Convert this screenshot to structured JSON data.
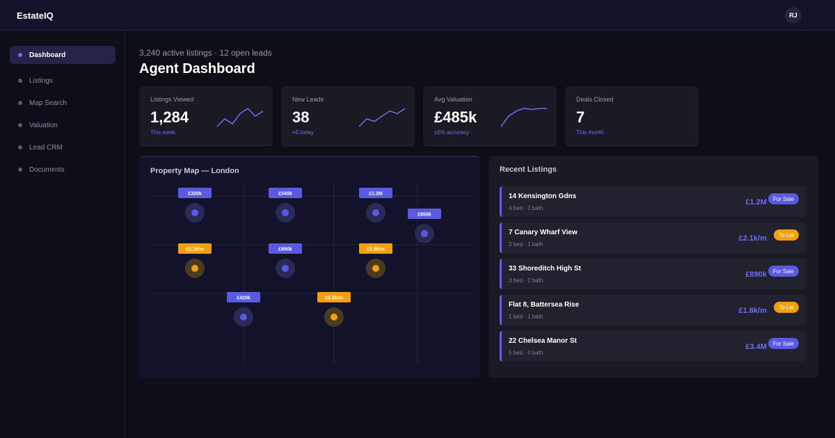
{
  "app": {
    "brand": "EstateIQ",
    "avatar_initials": "RJ"
  },
  "sidebar": {
    "items": [
      {
        "label": "Dashboard",
        "active": true
      },
      {
        "label": "Listings",
        "active": false
      },
      {
        "label": "Map Search",
        "active": false
      },
      {
        "label": "Valuation",
        "active": false
      },
      {
        "label": "Lead CRM",
        "active": false
      },
      {
        "label": "Documents",
        "active": false
      }
    ]
  },
  "header": {
    "subtitle": "3,240 active listings · 12 open leads",
    "title": "Agent Dashboard"
  },
  "stats": [
    {
      "label": "Listings Viewed",
      "value": "1,284",
      "sub": "This week",
      "trend": [
        2,
        5,
        3,
        7,
        9,
        6,
        8
      ]
    },
    {
      "label": "New Leads",
      "value": "38",
      "sub": "+5 today",
      "trend": [
        2,
        5,
        4,
        6,
        8,
        7,
        9
      ]
    },
    {
      "label": "Avg Valuation",
      "value": "£485k",
      "sub": "±5% accuracy",
      "trend": [
        2,
        6,
        8,
        9,
        8.6,
        9,
        9
      ]
    },
    {
      "label": "Deals Closed",
      "value": "7",
      "sub": "This month",
      "trend": []
    }
  ],
  "map": {
    "title": "Property Map — London",
    "pins": [
      {
        "price": "£320k",
        "type": "sale"
      },
      {
        "price": "£540k",
        "type": "sale"
      },
      {
        "price": "£1.2M",
        "type": "sale"
      },
      {
        "price": "£650k",
        "type": "sale"
      },
      {
        "price": "£2.1k/m",
        "type": "let"
      },
      {
        "price": "£890k",
        "type": "sale"
      },
      {
        "price": "£1.8k/m",
        "type": "let"
      },
      {
        "price": "£420k",
        "type": "sale"
      },
      {
        "price": "£3.2k/m",
        "type": "let"
      }
    ]
  },
  "recent": {
    "title": "Recent Listings",
    "items": [
      {
        "name": "14 Kensington Gdns",
        "meta": "4 bed · 3 bath",
        "price": "£1.2M",
        "badge": "For Sale",
        "type": "sale"
      },
      {
        "name": "7 Canary Wharf View",
        "meta": "2 bed · 1 bath",
        "price": "£2.1k/m",
        "badge": "To Let",
        "type": "let"
      },
      {
        "name": "33 Shoreditch High St",
        "meta": "3 bed · 2 bath",
        "price": "£890k",
        "badge": "For Sale",
        "type": "sale"
      },
      {
        "name": "Flat 8, Battersea Rise",
        "meta": "1 bed · 1 bath",
        "price": "£1.8k/m",
        "badge": "To Let",
        "type": "let"
      },
      {
        "name": "22 Chelsea Manor St",
        "meta": "5 bed · 4 bath",
        "price": "£3.4M",
        "badge": "For Sale",
        "type": "sale"
      }
    ]
  },
  "colors": {
    "accent": "#6e6ef0",
    "sale": "#5a5ae0",
    "let": "#f0a010"
  }
}
